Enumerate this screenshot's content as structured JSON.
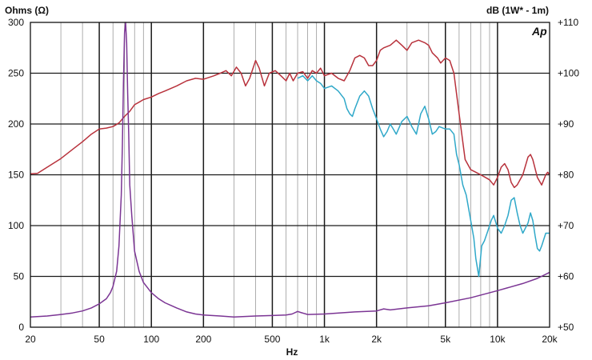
{
  "chart_data": {
    "type": "line",
    "title": "",
    "xlabel": "Hz",
    "ylabel_left": "Ohms (Ω)",
    "ylabel_right": "dB (1W* - 1m)",
    "logo": "Ap",
    "x_scale": "log",
    "xlim": [
      20,
      20000
    ],
    "ylim_left": [
      0,
      300
    ],
    "ylim_right": [
      50,
      110
    ],
    "grid": true,
    "x_ticks": [
      {
        "value": 20,
        "label": "20"
      },
      {
        "value": 50,
        "label": "50"
      },
      {
        "value": 100,
        "label": "100"
      },
      {
        "value": 200,
        "label": "200"
      },
      {
        "value": 500,
        "label": "500"
      },
      {
        "value": 1000,
        "label": "1k"
      },
      {
        "value": 2000,
        "label": "2k"
      },
      {
        "value": 5000,
        "label": "5k"
      },
      {
        "value": 10000,
        "label": "10k"
      },
      {
        "value": 20000,
        "label": "20k"
      }
    ],
    "y_left_ticks": [
      {
        "value": 0,
        "label": "0"
      },
      {
        "value": 50,
        "label": "50"
      },
      {
        "value": 100,
        "label": "100"
      },
      {
        "value": 150,
        "label": "150"
      },
      {
        "value": 200,
        "label": "200"
      },
      {
        "value": 250,
        "label": "250"
      },
      {
        "value": 300,
        "label": "300"
      }
    ],
    "y_right_ticks": [
      {
        "value": 50,
        "label": "+50"
      },
      {
        "value": 60,
        "label": "+60"
      },
      {
        "value": 70,
        "label": "+70"
      },
      {
        "value": 80,
        "label": "+80"
      },
      {
        "value": 90,
        "label": "+90"
      },
      {
        "value": 100,
        "label": "+100"
      },
      {
        "value": 110,
        "label": "+110"
      }
    ],
    "series": [
      {
        "axis": "right",
        "color": "#b8323c",
        "points": [
          [
            20,
            80.2
          ],
          [
            22,
            80.3
          ],
          [
            25,
            81.5
          ],
          [
            30,
            83.2
          ],
          [
            35,
            85
          ],
          [
            40,
            86.5
          ],
          [
            45,
            88
          ],
          [
            50,
            89
          ],
          [
            55,
            89.2
          ],
          [
            60,
            89.5
          ],
          [
            65,
            90.2
          ],
          [
            70,
            91.5
          ],
          [
            75,
            92.5
          ],
          [
            80,
            93.8
          ],
          [
            85,
            94.3
          ],
          [
            90,
            94.8
          ],
          [
            100,
            95.3
          ],
          [
            110,
            96
          ],
          [
            120,
            96.5
          ],
          [
            140,
            97.5
          ],
          [
            160,
            98.5
          ],
          [
            180,
            99
          ],
          [
            200,
            98.8
          ],
          [
            230,
            99.5
          ],
          [
            250,
            100
          ],
          [
            270,
            100.5
          ],
          [
            290,
            99.5
          ],
          [
            310,
            101.2
          ],
          [
            330,
            100
          ],
          [
            350,
            97.5
          ],
          [
            370,
            99
          ],
          [
            400,
            102.5
          ],
          [
            420,
            101
          ],
          [
            450,
            97.5
          ],
          [
            480,
            100
          ],
          [
            520,
            100.5
          ],
          [
            560,
            99.5
          ],
          [
            600,
            98.5
          ],
          [
            630,
            100
          ],
          [
            660,
            98.5
          ],
          [
            700,
            100
          ],
          [
            750,
            100.3
          ],
          [
            800,
            99
          ],
          [
            850,
            100.5
          ],
          [
            900,
            100
          ],
          [
            950,
            101
          ],
          [
            1000,
            99.5
          ],
          [
            1100,
            100
          ],
          [
            1200,
            99
          ],
          [
            1300,
            98.5
          ],
          [
            1400,
            100.5
          ],
          [
            1500,
            103
          ],
          [
            1600,
            103.5
          ],
          [
            1700,
            103
          ],
          [
            1800,
            101.5
          ],
          [
            1900,
            101.5
          ],
          [
            2000,
            102.5
          ],
          [
            2100,
            104.5
          ],
          [
            2200,
            105
          ],
          [
            2400,
            105.5
          ],
          [
            2600,
            106.5
          ],
          [
            2800,
            105.5
          ],
          [
            3000,
            104.5
          ],
          [
            3200,
            106
          ],
          [
            3500,
            106.5
          ],
          [
            3800,
            106
          ],
          [
            4000,
            105.5
          ],
          [
            4200,
            104
          ],
          [
            4500,
            103
          ],
          [
            4700,
            102
          ],
          [
            5000,
            103
          ],
          [
            5300,
            102.5
          ],
          [
            5600,
            100
          ],
          [
            6000,
            92
          ],
          [
            6500,
            83
          ],
          [
            7000,
            81
          ],
          [
            7500,
            80.5
          ],
          [
            8000,
            80
          ],
          [
            8500,
            79.5
          ],
          [
            9000,
            79
          ],
          [
            9500,
            78
          ],
          [
            10000,
            79.5
          ],
          [
            10500,
            81.5
          ],
          [
            11000,
            82.2
          ],
          [
            11500,
            81
          ],
          [
            12000,
            78.5
          ],
          [
            12500,
            77.5
          ],
          [
            13000,
            78
          ],
          [
            14000,
            80
          ],
          [
            15000,
            83.5
          ],
          [
            15500,
            84
          ],
          [
            16000,
            83
          ],
          [
            17000,
            79.5
          ],
          [
            18000,
            78
          ],
          [
            19000,
            80
          ],
          [
            19500,
            80.5
          ],
          [
            20000,
            80
          ]
        ]
      },
      {
        "axis": "right",
        "color": "#2fa8c9",
        "points": [
          [
            700,
            99
          ],
          [
            750,
            99.5
          ],
          [
            800,
            98.5
          ],
          [
            850,
            99.5
          ],
          [
            900,
            98.5
          ],
          [
            950,
            98
          ],
          [
            1000,
            97
          ],
          [
            1100,
            97.5
          ],
          [
            1200,
            96.5
          ],
          [
            1300,
            95
          ],
          [
            1350,
            93
          ],
          [
            1400,
            92
          ],
          [
            1450,
            91.5
          ],
          [
            1500,
            93
          ],
          [
            1600,
            95.5
          ],
          [
            1700,
            96.5
          ],
          [
            1800,
            95.5
          ],
          [
            1900,
            93
          ],
          [
            2000,
            91
          ],
          [
            2100,
            89
          ],
          [
            2200,
            87.5
          ],
          [
            2300,
            88.5
          ],
          [
            2400,
            90
          ],
          [
            2500,
            89
          ],
          [
            2600,
            88
          ],
          [
            2800,
            90.5
          ],
          [
            3000,
            91.5
          ],
          [
            3200,
            89.5
          ],
          [
            3400,
            88
          ],
          [
            3600,
            92
          ],
          [
            3800,
            93.5
          ],
          [
            4000,
            91
          ],
          [
            4200,
            88
          ],
          [
            4400,
            88.5
          ],
          [
            4600,
            89.5
          ],
          [
            5000,
            89
          ],
          [
            5300,
            89
          ],
          [
            5600,
            88
          ],
          [
            5800,
            84
          ],
          [
            6000,
            82
          ],
          [
            6300,
            78
          ],
          [
            6600,
            76
          ],
          [
            7000,
            71
          ],
          [
            7300,
            67.5
          ],
          [
            7500,
            63.5
          ],
          [
            7800,
            60
          ],
          [
            8100,
            66
          ],
          [
            8400,
            67
          ],
          [
            8800,
            69
          ],
          [
            9200,
            71
          ],
          [
            9500,
            72
          ],
          [
            10000,
            69.5
          ],
          [
            10500,
            68.5
          ],
          [
            11000,
            70
          ],
          [
            11500,
            72
          ],
          [
            12000,
            75
          ],
          [
            12500,
            75.5
          ],
          [
            13000,
            72.5
          ],
          [
            13500,
            70
          ],
          [
            14000,
            68.5
          ],
          [
            15000,
            70.5
          ],
          [
            15500,
            72.5
          ],
          [
            16000,
            71
          ],
          [
            16500,
            68
          ],
          [
            17000,
            65.5
          ],
          [
            17500,
            65
          ],
          [
            18000,
            66
          ],
          [
            19000,
            68.5
          ],
          [
            20000,
            68.5
          ]
        ]
      },
      {
        "axis": "left",
        "color": "#7b3594",
        "points": [
          [
            20,
            10
          ],
          [
            25,
            11
          ],
          [
            30,
            12.5
          ],
          [
            35,
            14
          ],
          [
            40,
            16
          ],
          [
            45,
            19
          ],
          [
            50,
            23
          ],
          [
            55,
            28
          ],
          [
            58,
            34
          ],
          [
            60,
            40
          ],
          [
            63,
            55
          ],
          [
            65,
            80
          ],
          [
            67,
            130
          ],
          [
            68,
            180
          ],
          [
            69,
            240
          ],
          [
            70,
            290
          ],
          [
            71,
            300
          ],
          [
            72,
            280
          ],
          [
            73,
            230
          ],
          [
            74,
            190
          ],
          [
            75,
            140
          ],
          [
            77,
            110
          ],
          [
            80,
            75
          ],
          [
            85,
            55
          ],
          [
            90,
            44
          ],
          [
            100,
            34
          ],
          [
            110,
            28
          ],
          [
            120,
            24
          ],
          [
            140,
            19
          ],
          [
            160,
            15
          ],
          [
            180,
            13
          ],
          [
            200,
            12
          ],
          [
            250,
            11
          ],
          [
            300,
            10
          ],
          [
            400,
            11
          ],
          [
            500,
            11.5
          ],
          [
            600,
            12
          ],
          [
            650,
            13
          ],
          [
            700,
            15.5
          ],
          [
            730,
            14.5
          ],
          [
            800,
            12.5
          ],
          [
            1000,
            13
          ],
          [
            1500,
            15
          ],
          [
            2000,
            16
          ],
          [
            2200,
            18
          ],
          [
            2400,
            17
          ],
          [
            3000,
            19
          ],
          [
            4000,
            21
          ],
          [
            5000,
            24
          ],
          [
            7000,
            29
          ],
          [
            10000,
            36
          ],
          [
            14000,
            43
          ],
          [
            17000,
            48
          ],
          [
            20000,
            54
          ]
        ]
      }
    ]
  }
}
